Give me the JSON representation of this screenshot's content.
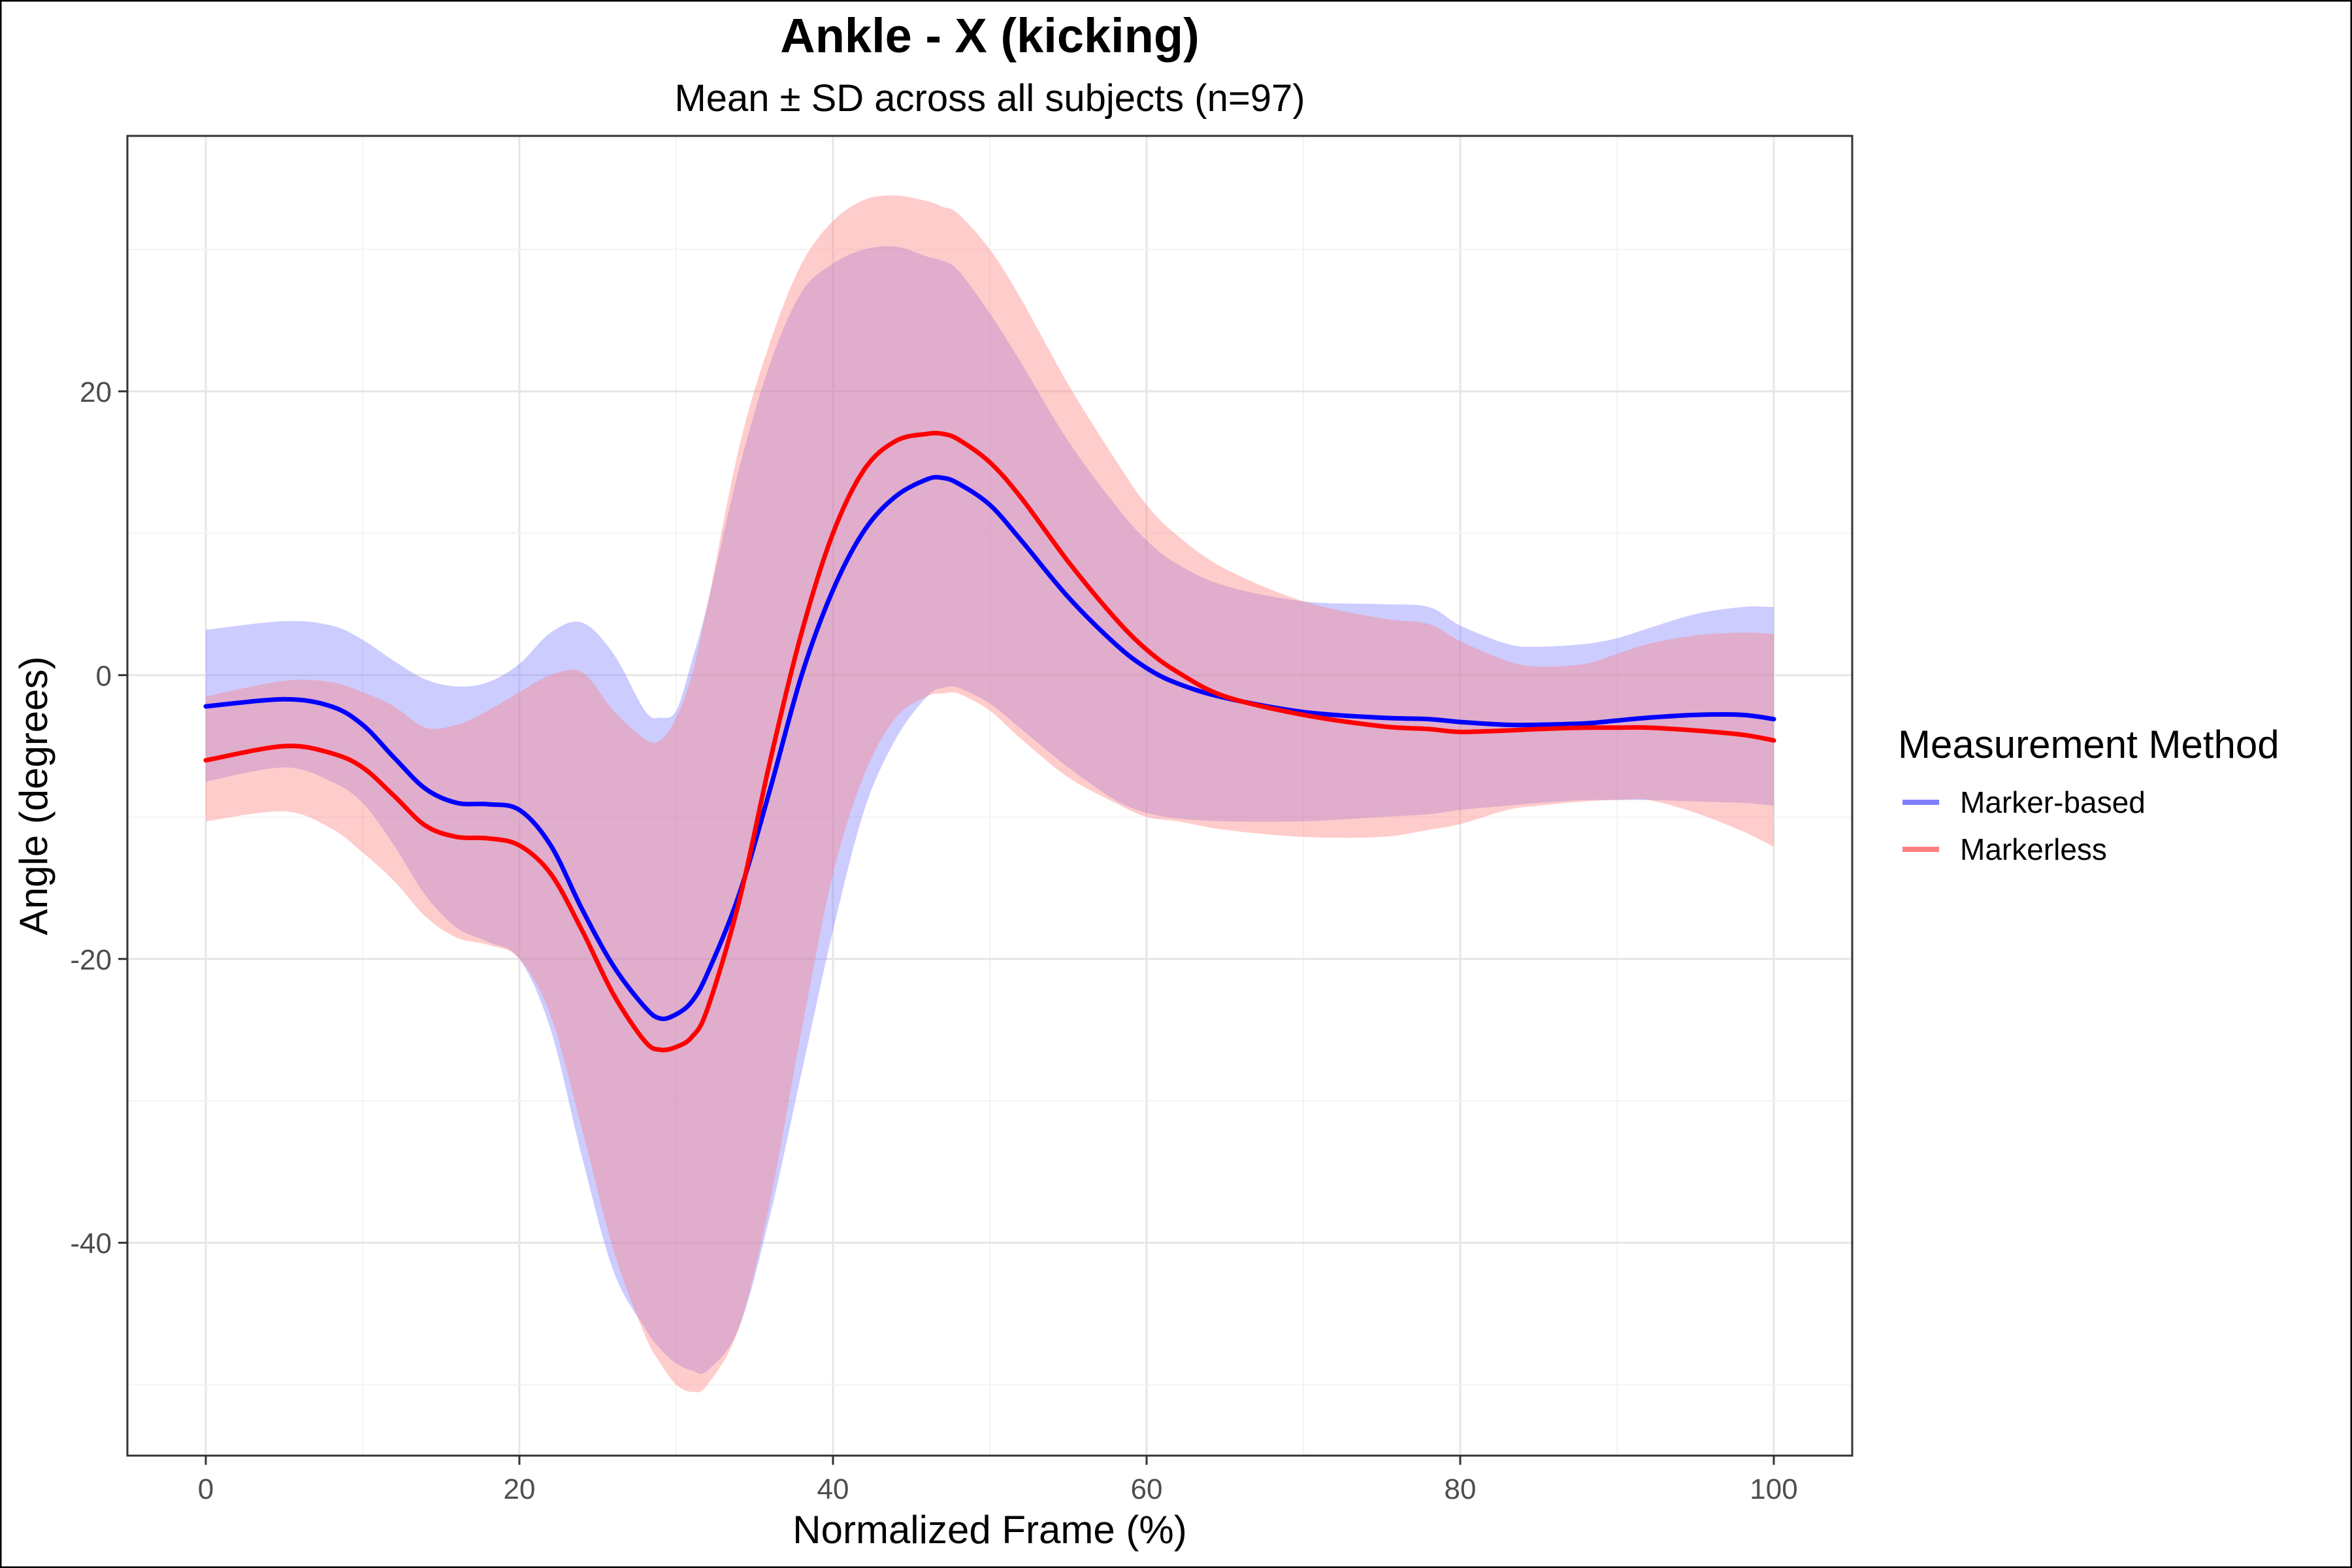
{
  "chart_data": {
    "type": "line",
    "title": "Ankle - X (kicking)",
    "subtitle": "Mean ± SD across all subjects (n=97)",
    "xlabel": "Normalized Frame (%)",
    "ylabel": "Angle (degrees)",
    "xlim": [
      -5,
      105
    ],
    "ylim": [
      -55,
      38
    ],
    "x_ticks": [
      0,
      20,
      40,
      60,
      80,
      100
    ],
    "x_tick_labels": [
      "0",
      "20",
      "40",
      "60",
      "80",
      "100"
    ],
    "y_ticks": [
      -40,
      -20,
      0,
      20
    ],
    "y_tick_labels": [
      "-40",
      "-20",
      "0",
      "20"
    ],
    "grid": true,
    "legend": {
      "title": "Measurement Method",
      "position": "right"
    },
    "x": [
      0,
      5,
      8,
      10,
      12,
      14,
      16,
      18,
      20,
      22,
      24,
      26,
      28,
      29,
      30,
      31,
      32,
      34,
      36,
      38,
      40,
      42,
      44,
      46,
      47,
      48,
      50,
      52,
      55,
      58,
      60,
      62,
      65,
      70,
      75,
      78,
      80,
      83,
      85,
      88,
      90,
      92,
      95,
      98,
      100
    ],
    "series": [
      {
        "name": "Marker-based",
        "color": "#0000ff",
        "band_color": "#8080ff",
        "mean": [
          -2.2,
          -1.7,
          -2.2,
          -3.5,
          -5.8,
          -8.0,
          -9.0,
          -9.1,
          -9.5,
          -12.0,
          -16.5,
          -20.5,
          -23.4,
          -24.2,
          -23.9,
          -23.0,
          -21.0,
          -15.5,
          -8.0,
          0.0,
          6.0,
          10.2,
          12.6,
          13.8,
          13.9,
          13.5,
          12.0,
          9.5,
          5.5,
          2.2,
          0.5,
          -0.6,
          -1.6,
          -2.6,
          -3.0,
          -3.1,
          -3.3,
          -3.5,
          -3.5,
          -3.4,
          -3.2,
          -3.0,
          -2.8,
          -2.8,
          -3.1
        ],
        "lower": [
          -7.5,
          -6.5,
          -7.5,
          -9.0,
          -12.0,
          -15.5,
          -17.8,
          -18.8,
          -20.0,
          -25.0,
          -34.0,
          -42.0,
          -46.0,
          -47.5,
          -48.5,
          -49.0,
          -49.0,
          -46.0,
          -38.0,
          -28.0,
          -18.0,
          -9.5,
          -4.5,
          -1.5,
          -0.9,
          -0.9,
          -2.0,
          -3.8,
          -6.5,
          -8.8,
          -9.7,
          -10.1,
          -10.3,
          -10.3,
          -10.0,
          -9.8,
          -9.5,
          -9.2,
          -9.0,
          -8.8,
          -8.8,
          -8.8,
          -8.9,
          -9.0,
          -9.2
        ],
        "upper": [
          3.2,
          3.8,
          3.5,
          2.5,
          1.0,
          -0.3,
          -0.8,
          -0.5,
          0.8,
          3.0,
          3.7,
          1.5,
          -2.5,
          -3.0,
          -2.5,
          1.0,
          5.0,
          14.5,
          22.0,
          27.0,
          29.0,
          30.0,
          30.2,
          29.5,
          29.2,
          28.5,
          25.5,
          22.0,
          16.5,
          12.0,
          9.5,
          7.8,
          6.3,
          5.2,
          5.0,
          4.8,
          3.5,
          2.2,
          2.0,
          2.2,
          2.6,
          3.3,
          4.3,
          4.8,
          4.8
        ]
      },
      {
        "name": "Markerless",
        "color": "#ff0000",
        "band_color": "#ff8080",
        "mean": [
          -6.0,
          -5.0,
          -5.5,
          -6.5,
          -8.5,
          -10.6,
          -11.4,
          -11.5,
          -12.0,
          -14.0,
          -18.0,
          -22.5,
          -25.8,
          -26.4,
          -26.2,
          -25.5,
          -23.5,
          -16.0,
          -6.0,
          3.0,
          10.0,
          14.5,
          16.5,
          17.0,
          17.0,
          16.6,
          15.0,
          12.5,
          8.0,
          4.0,
          1.8,
          0.2,
          -1.5,
          -2.8,
          -3.6,
          -3.8,
          -4.0,
          -3.9,
          -3.8,
          -3.7,
          -3.7,
          -3.7,
          -3.9,
          -4.2,
          -4.6
        ],
        "lower": [
          -10.3,
          -9.6,
          -10.8,
          -12.5,
          -14.5,
          -17.0,
          -18.5,
          -19.0,
          -20.0,
          -24.0,
          -32.0,
          -40.5,
          -46.5,
          -48.5,
          -50.0,
          -50.5,
          -50.0,
          -46.0,
          -37.0,
          -25.0,
          -14.0,
          -7.0,
          -3.0,
          -1.5,
          -1.3,
          -1.3,
          -2.5,
          -4.5,
          -7.2,
          -9.0,
          -10.0,
          -10.3,
          -10.9,
          -11.4,
          -11.4,
          -10.9,
          -10.5,
          -9.5,
          -9.2,
          -8.9,
          -8.8,
          -8.8,
          -9.7,
          -11.0,
          -12.1
        ],
        "upper": [
          -1.5,
          -0.4,
          -0.5,
          -1.2,
          -2.2,
          -3.7,
          -3.5,
          -2.5,
          -1.2,
          0.0,
          0.2,
          -2.5,
          -4.5,
          -4.6,
          -3.0,
          0.0,
          5.0,
          16.0,
          23.5,
          29.0,
          32.0,
          33.5,
          33.8,
          33.4,
          33.0,
          32.5,
          30.0,
          26.5,
          20.5,
          15.2,
          12.0,
          9.8,
          7.5,
          5.2,
          4.0,
          3.6,
          2.4,
          1.0,
          0.6,
          0.8,
          1.5,
          2.2,
          2.8,
          3.0,
          2.9
        ]
      }
    ]
  }
}
